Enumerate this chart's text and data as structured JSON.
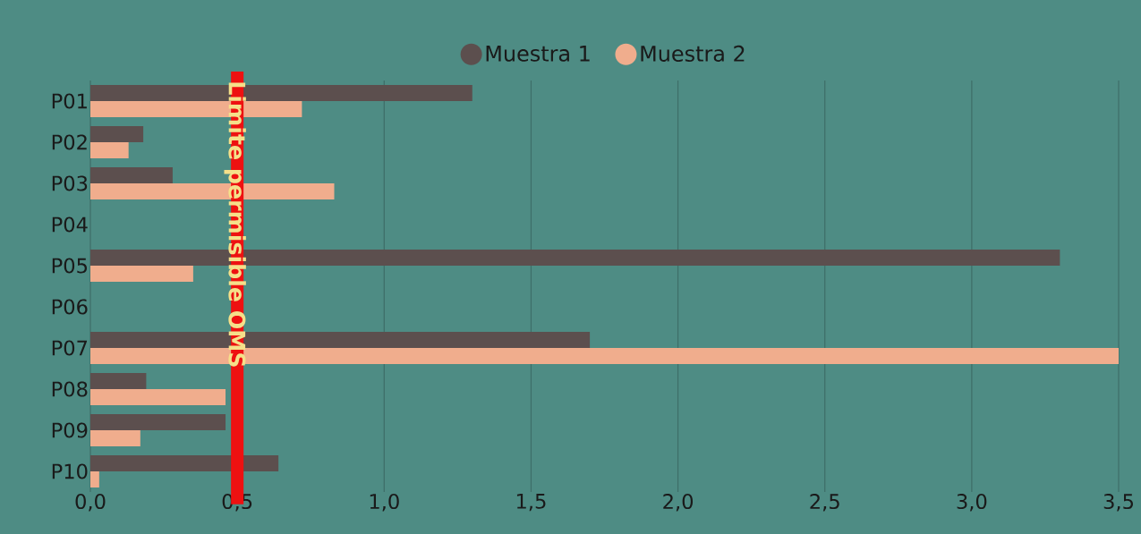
{
  "chart_data": {
    "type": "bar",
    "orientation": "horizontal",
    "categories": [
      "P01",
      "P02",
      "P03",
      "P04",
      "P05",
      "P06",
      "P07",
      "P08",
      "P09",
      "P10"
    ],
    "series": [
      {
        "name": "Muestra 1",
        "color": "#5c4f4e",
        "values": [
          1.3,
          0.18,
          0.28,
          null,
          3.3,
          null,
          1.7,
          0.19,
          0.46,
          0.64
        ]
      },
      {
        "name": "Muestra 2",
        "color": "#f0ad8d",
        "values": [
          0.72,
          0.13,
          0.83,
          null,
          0.35,
          null,
          3.5,
          0.46,
          0.17,
          0.03
        ]
      }
    ],
    "xlim": [
      0,
      3.5
    ],
    "xticks": [
      {
        "value": 0,
        "label": "0,0"
      },
      {
        "value": 0.5,
        "label": "0,5"
      },
      {
        "value": 1,
        "label": "1,0"
      },
      {
        "value": 1.5,
        "label": "1,5"
      },
      {
        "value": 2,
        "label": "2,0"
      },
      {
        "value": 2.5,
        "label": "2,5"
      },
      {
        "value": 3,
        "label": "3,0"
      },
      {
        "value": 3.5,
        "label": "3,5"
      }
    ],
    "grid": "x",
    "legend": "top",
    "ref_lines": [
      {
        "axis": "x",
        "value": 0.5,
        "label": "Limite permisible OMS",
        "color": "#ee1111"
      }
    ]
  }
}
